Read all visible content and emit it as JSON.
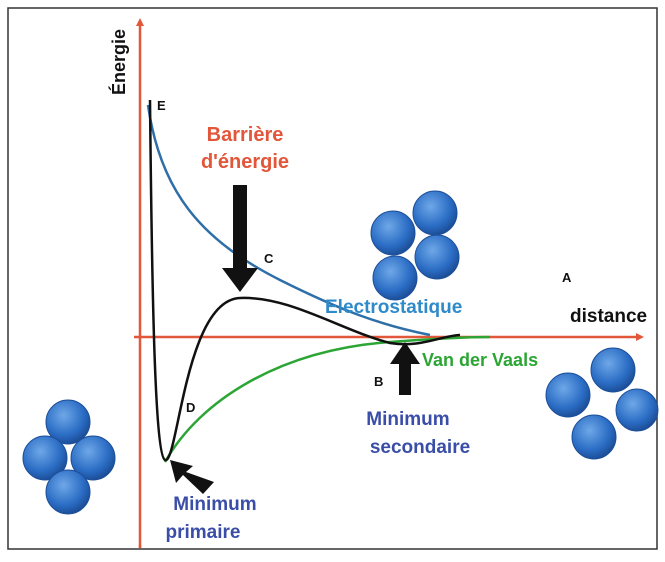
{
  "axes": {
    "y_label": "Énergie",
    "x_label": "distance"
  },
  "barrier": {
    "line1": "Barrière",
    "line2": "d'énergie"
  },
  "curves": {
    "electrostatic": "Electrostatique",
    "van_der_waals": "Van der Vaals"
  },
  "points": {
    "e": "E",
    "c": "C",
    "a": "A",
    "b": "B",
    "d": "D"
  },
  "secondary_minimum": {
    "line1": "Minimum",
    "line2": "secondaire"
  },
  "primary_minimum": {
    "line1": "Minimum",
    "line2": "primaire"
  }
}
